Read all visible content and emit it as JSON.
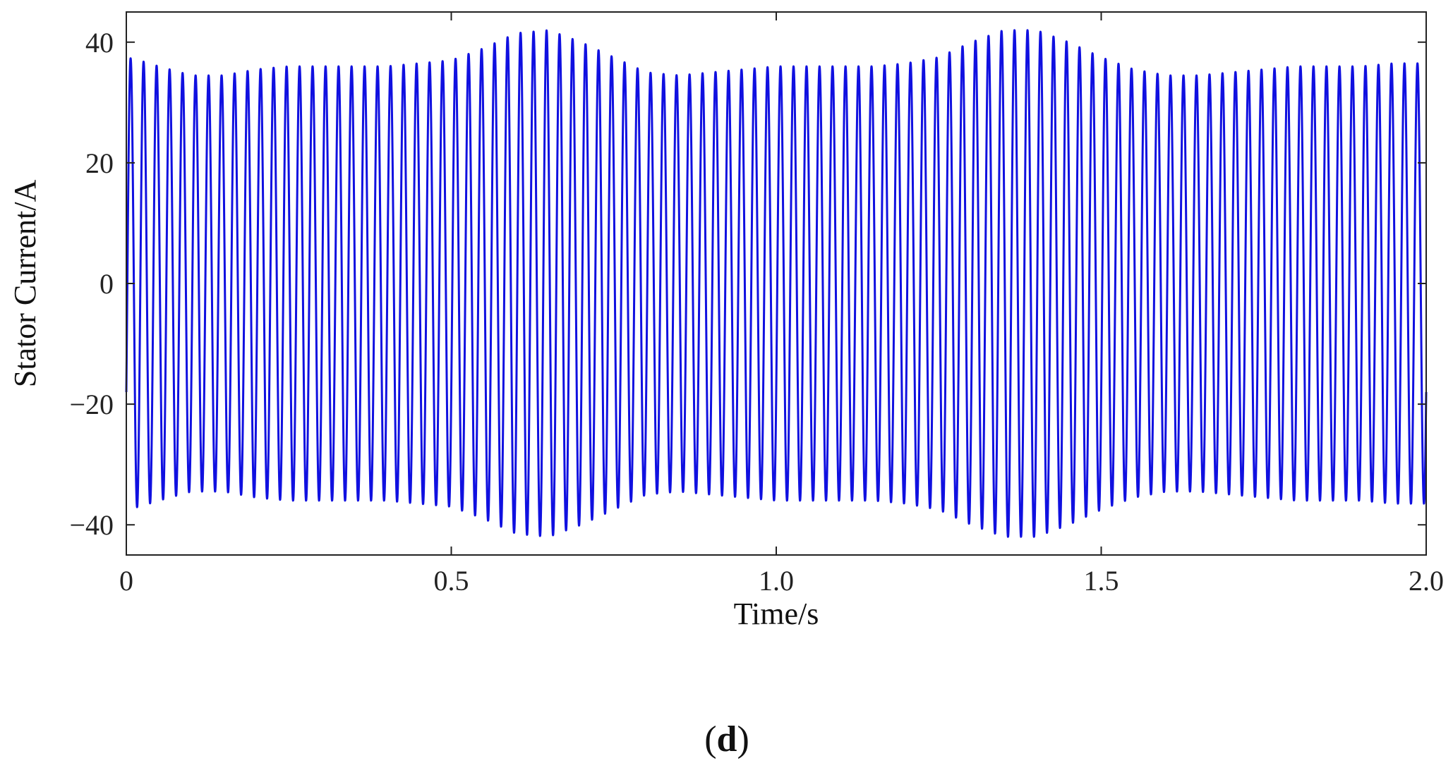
{
  "chart_data": {
    "type": "line",
    "title": "",
    "xlabel": "Time/s",
    "ylabel": "Stator Current/A",
    "xlim": [
      0,
      2.0
    ],
    "ylim": [
      -45,
      45
    ],
    "xticks": [
      0,
      0.5,
      1.0,
      1.5,
      2.0
    ],
    "xtick_labels": [
      "0",
      "0.5",
      "1.0",
      "1.5",
      "2.0"
    ],
    "yticks": [
      40,
      20,
      0,
      -20,
      -40
    ],
    "ytick_labels": [
      "40",
      "20",
      "0",
      "−20",
      "−40"
    ],
    "grid": false,
    "series": [
      {
        "color": "#1010e0",
        "frequency_hz": 50,
        "envelope_time_s": [
          0,
          0.02,
          0.05,
          0.1,
          0.15,
          0.2,
          0.25,
          0.3,
          0.35,
          0.4,
          0.45,
          0.5,
          0.55,
          0.6,
          0.65,
          0.7,
          0.75,
          0.8,
          0.85,
          0.9,
          0.95,
          1.0,
          1.05,
          1.1,
          1.15,
          1.2,
          1.25,
          1.3,
          1.35,
          1.4,
          1.45,
          1.5,
          1.55,
          1.6,
          1.65,
          1.7,
          1.75,
          1.8,
          1.85,
          1.9,
          1.95,
          2.0
        ],
        "envelope_amplitude_a": [
          37.5,
          37,
          36,
          34.5,
          34.5,
          35.5,
          36,
          36,
          36,
          36,
          36.5,
          37,
          39,
          41.5,
          42,
          40,
          37.5,
          35,
          34.5,
          35,
          35.5,
          36,
          36,
          36,
          36,
          36.5,
          37.5,
          40,
          42,
          42,
          40,
          37.5,
          35.5,
          34.5,
          34.5,
          35,
          35.5,
          36,
          36,
          36,
          36.5,
          36.5
        ],
        "start_value_a": -18,
        "end_value_a": -18
      }
    ]
  },
  "caption": {
    "open": "(",
    "letter": "d",
    "close": ")"
  },
  "colors": {
    "axis": "#222222",
    "line": "#1010e0"
  }
}
